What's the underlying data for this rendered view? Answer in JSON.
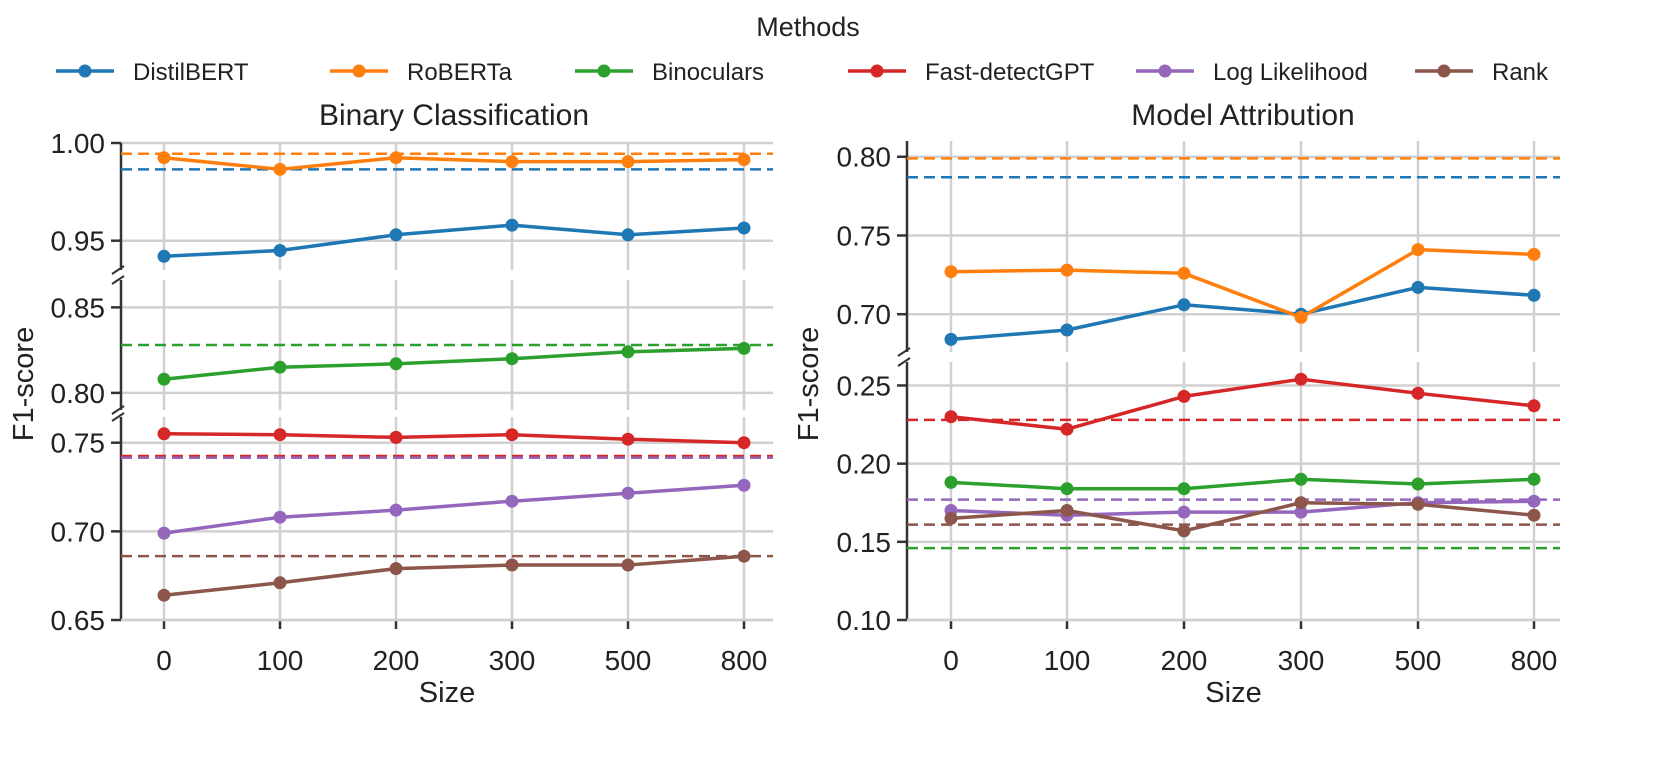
{
  "legend": {
    "title": "Methods",
    "entries": [
      {
        "name": "DistilBERT",
        "color": "#1f77b4"
      },
      {
        "name": "RoBERTa",
        "color": "#ff7f0e"
      },
      {
        "name": "Binoculars",
        "color": "#2ca02c"
      },
      {
        "name": "Fast-detectGPT",
        "color": "#d62728"
      },
      {
        "name": "Log Likelihood",
        "color": "#9467bd"
      },
      {
        "name": "Rank",
        "color": "#8c564b"
      }
    ]
  },
  "chart_data": [
    {
      "type": "line",
      "title": "Binary Classification",
      "xlabel": "Size",
      "ylabel": "F1-score",
      "categories": [
        "0",
        "100",
        "200",
        "300",
        "500",
        "800"
      ],
      "broken_axis": true,
      "segments": [
        {
          "ylim": [
            0.935,
            1.0
          ],
          "yticks": [
            "0.95",
            "1.00"
          ]
        },
        {
          "ylim": [
            0.79,
            0.866
          ],
          "yticks": [
            "0.80",
            "0.85"
          ]
        },
        {
          "ylim": [
            0.65,
            0.7645
          ],
          "yticks": [
            "0.65",
            "0.70",
            "0.75"
          ]
        }
      ],
      "series": [
        {
          "name": "DistilBERT",
          "color": "#1f77b4",
          "segment": 0,
          "values": [
            0.942,
            0.945,
            0.953,
            0.958,
            0.953,
            0.9565
          ],
          "baseline": 0.9865
        },
        {
          "name": "RoBERTa",
          "color": "#ff7f0e",
          "segment": 0,
          "values": [
            0.9925,
            0.9865,
            0.9925,
            0.9905,
            0.9905,
            0.9915
          ],
          "baseline": 0.9945
        },
        {
          "name": "Binoculars",
          "color": "#2ca02c",
          "segment": 1,
          "values": [
            0.808,
            0.815,
            0.817,
            0.82,
            0.824,
            0.826
          ],
          "baseline": 0.828
        },
        {
          "name": "Fast-detectGPT",
          "color": "#d62728",
          "segment": 2,
          "values": [
            0.755,
            0.7545,
            0.753,
            0.7545,
            0.752,
            0.75
          ],
          "baseline": 0.7425
        },
        {
          "name": "Log Likelihood",
          "color": "#9467bd",
          "segment": 2,
          "values": [
            0.699,
            0.708,
            0.712,
            0.717,
            0.7215,
            0.726
          ],
          "baseline": 0.7415
        },
        {
          "name": "Rank",
          "color": "#8c564b",
          "segment": 2,
          "values": [
            0.664,
            0.671,
            0.679,
            0.681,
            0.681,
            0.686
          ],
          "baseline": 0.686
        }
      ]
    },
    {
      "type": "line",
      "title": "Model Attribution",
      "xlabel": "Size",
      "ylabel": "F1-score",
      "categories": [
        "0",
        "100",
        "200",
        "300",
        "500",
        "800"
      ],
      "broken_axis": true,
      "segments": [
        {
          "ylim": [
            0.676,
            0.81
          ],
          "yticks": [
            "0.70",
            "0.75",
            "0.80"
          ]
        },
        {
          "ylim": [
            0.1,
            0.265
          ],
          "yticks": [
            "0.10",
            "0.15",
            "0.20",
            "0.25"
          ]
        }
      ],
      "series": [
        {
          "name": "DistilBERT",
          "color": "#1f77b4",
          "segment": 0,
          "values": [
            0.684,
            0.69,
            0.706,
            0.7,
            0.717,
            0.712
          ],
          "baseline": 0.787
        },
        {
          "name": "RoBERTa",
          "color": "#ff7f0e",
          "segment": 0,
          "values": [
            0.727,
            0.728,
            0.726,
            0.698,
            0.741,
            0.738
          ],
          "baseline": 0.799
        },
        {
          "name": "Binoculars",
          "color": "#2ca02c",
          "segment": 1,
          "values": [
            0.188,
            0.184,
            0.184,
            0.19,
            0.187,
            0.19
          ],
          "baseline": 0.146
        },
        {
          "name": "Fast-detectGPT",
          "color": "#d62728",
          "segment": 1,
          "values": [
            0.23,
            0.222,
            0.243,
            0.254,
            0.245,
            0.237
          ],
          "baseline": 0.228
        },
        {
          "name": "Log Likelihood",
          "color": "#9467bd",
          "segment": 1,
          "values": [
            0.17,
            0.167,
            0.169,
            0.169,
            0.175,
            0.176
          ],
          "baseline": 0.177
        },
        {
          "name": "Rank",
          "color": "#8c564b",
          "segment": 1,
          "values": [
            0.165,
            0.17,
            0.157,
            0.175,
            0.174,
            0.167
          ],
          "baseline": 0.161
        }
      ]
    }
  ]
}
